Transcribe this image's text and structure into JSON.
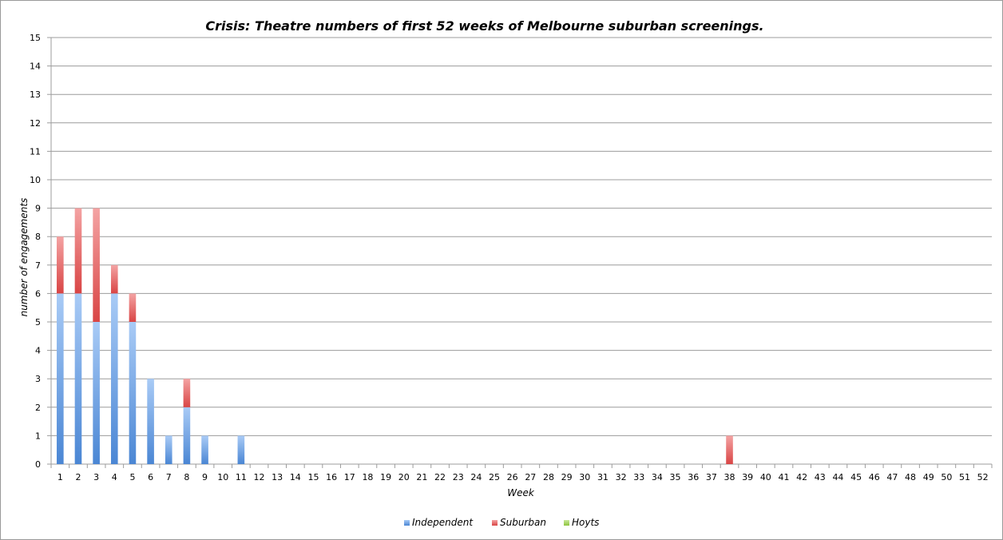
{
  "chart_data": {
    "type": "bar",
    "stacked": true,
    "title": "Crisis: Theatre numbers of first 52 weeks of Melbourne suburban screenings.",
    "xlabel": "Week",
    "ylabel": "number of engagements",
    "ylim": [
      0,
      15
    ],
    "yticks": [
      0,
      1,
      2,
      3,
      4,
      5,
      6,
      7,
      8,
      9,
      10,
      11,
      12,
      13,
      14,
      15
    ],
    "grid": true,
    "legend_position": "bottom",
    "categories": [
      "1",
      "2",
      "3",
      "4",
      "5",
      "6",
      "7",
      "8",
      "9",
      "10",
      "11",
      "12",
      "13",
      "14",
      "15",
      "16",
      "17",
      "18",
      "19",
      "20",
      "21",
      "22",
      "23",
      "24",
      "25",
      "26",
      "27",
      "28",
      "29",
      "30",
      "31",
      "32",
      "33",
      "34",
      "35",
      "36",
      "37",
      "38",
      "39",
      "40",
      "41",
      "42",
      "43",
      "44",
      "45",
      "46",
      "47",
      "48",
      "49",
      "50",
      "51",
      "52"
    ],
    "series": [
      {
        "name": "Independent",
        "color": "#4a86d4",
        "color_light": "#a9cbf6",
        "values": [
          6,
          6,
          5,
          6,
          5,
          3,
          1,
          2,
          1,
          0,
          1,
          0,
          0,
          0,
          0,
          0,
          0,
          0,
          0,
          0,
          0,
          0,
          0,
          0,
          0,
          0,
          0,
          0,
          0,
          0,
          0,
          0,
          0,
          0,
          0,
          0,
          0,
          0,
          0,
          0,
          0,
          0,
          0,
          0,
          0,
          0,
          0,
          0,
          0,
          0,
          0,
          0
        ]
      },
      {
        "name": "Suburban",
        "color": "#d94545",
        "color_light": "#f4a3a3",
        "values": [
          2,
          3,
          4,
          1,
          1,
          0,
          0,
          1,
          0,
          0,
          0,
          0,
          0,
          0,
          0,
          0,
          0,
          0,
          0,
          0,
          0,
          0,
          0,
          0,
          0,
          0,
          0,
          0,
          0,
          0,
          0,
          0,
          0,
          0,
          0,
          0,
          0,
          1,
          0,
          0,
          0,
          0,
          0,
          0,
          0,
          0,
          0,
          0,
          0,
          0,
          0,
          0
        ]
      },
      {
        "name": "Hoyts",
        "color": "#8fc43f",
        "color_light": "#c8e89a",
        "values": [
          0,
          0,
          0,
          0,
          0,
          0,
          0,
          0,
          0,
          0,
          0,
          0,
          0,
          0,
          0,
          0,
          0,
          0,
          0,
          0,
          0,
          0,
          0,
          0,
          0,
          0,
          0,
          0,
          0,
          0,
          0,
          0,
          0,
          0,
          0,
          0,
          0,
          0,
          0,
          0,
          0,
          0,
          0,
          0,
          0,
          0,
          0,
          0,
          0,
          0,
          0,
          0
        ]
      }
    ]
  }
}
